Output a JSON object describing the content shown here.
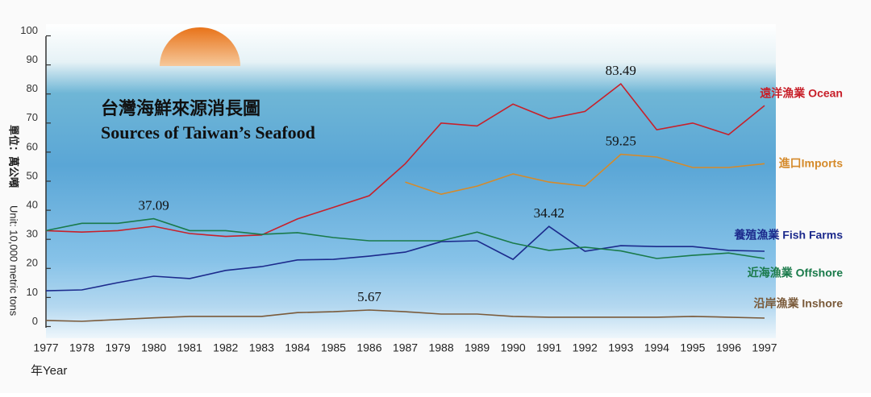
{
  "chart_data": {
    "type": "line",
    "title_zh": "台灣海鮮來源消長圖",
    "title": "Sources of Taiwan’s Seafood",
    "ylabel_zh": "單位：萬公噸",
    "ylabel": "Unit: 10,000 metric tons",
    "xlabel": "年Year",
    "categories": [
      "1977",
      "1978",
      "1979",
      "1980",
      "1981",
      "1982",
      "1983",
      "1984",
      "1985",
      "1986",
      "1987",
      "1988",
      "1989",
      "1990",
      "1991",
      "1992",
      "1993",
      "1994",
      "1995",
      "1996",
      "1997"
    ],
    "ylim": [
      0,
      100
    ],
    "yticks": [
      0,
      10,
      20,
      30,
      40,
      50,
      60,
      70,
      80,
      90,
      100
    ],
    "series": [
      {
        "name": "遠洋漁業 Ocean",
        "color": "#c8202a",
        "values": [
          33,
          32.5,
          33,
          34.5,
          32,
          31,
          31.5,
          37,
          41,
          45,
          56,
          70,
          69,
          76.5,
          71.5,
          74,
          83.49,
          67.7,
          70,
          66,
          76
        ]
      },
      {
        "name": "進口Imports",
        "color": "#d58a2a",
        "values": [
          null,
          null,
          null,
          null,
          null,
          null,
          null,
          null,
          null,
          null,
          49.7,
          45.5,
          48.3,
          52.5,
          49.7,
          48.3,
          59.25,
          58.3,
          54.7,
          54.7,
          56
        ]
      },
      {
        "name": "養殖漁業 Fish Farms",
        "color": "#1c2a8c",
        "values": [
          12.3,
          12.6,
          15.1,
          17.3,
          16.5,
          19.3,
          20.6,
          22.9,
          23.1,
          24.2,
          25.6,
          29.2,
          29.5,
          23.1,
          34.42,
          25.9,
          27.8,
          27.5,
          27.5,
          26.2,
          25.9
        ]
      },
      {
        "name": "近海漁業 Offshore",
        "color": "#1a7a4a",
        "values": [
          33,
          35.5,
          35.5,
          37.09,
          33,
          33,
          31.7,
          32.3,
          30.6,
          29.5,
          29.5,
          29.5,
          32.5,
          28.7,
          26.2,
          27.3,
          26,
          23.4,
          24.5,
          25.3,
          23.4
        ]
      },
      {
        "name": "沿岸漁業 Inshore",
        "color": "#7a5a3a",
        "values": [
          2.1,
          1.8,
          2.4,
          3,
          3.5,
          3.5,
          3.5,
          4.8,
          5.1,
          5.67,
          5.1,
          4.3,
          4.3,
          3.5,
          3.2,
          3.2,
          3.2,
          3.2,
          3.5,
          3.2,
          2.9
        ]
      }
    ]
  }
}
